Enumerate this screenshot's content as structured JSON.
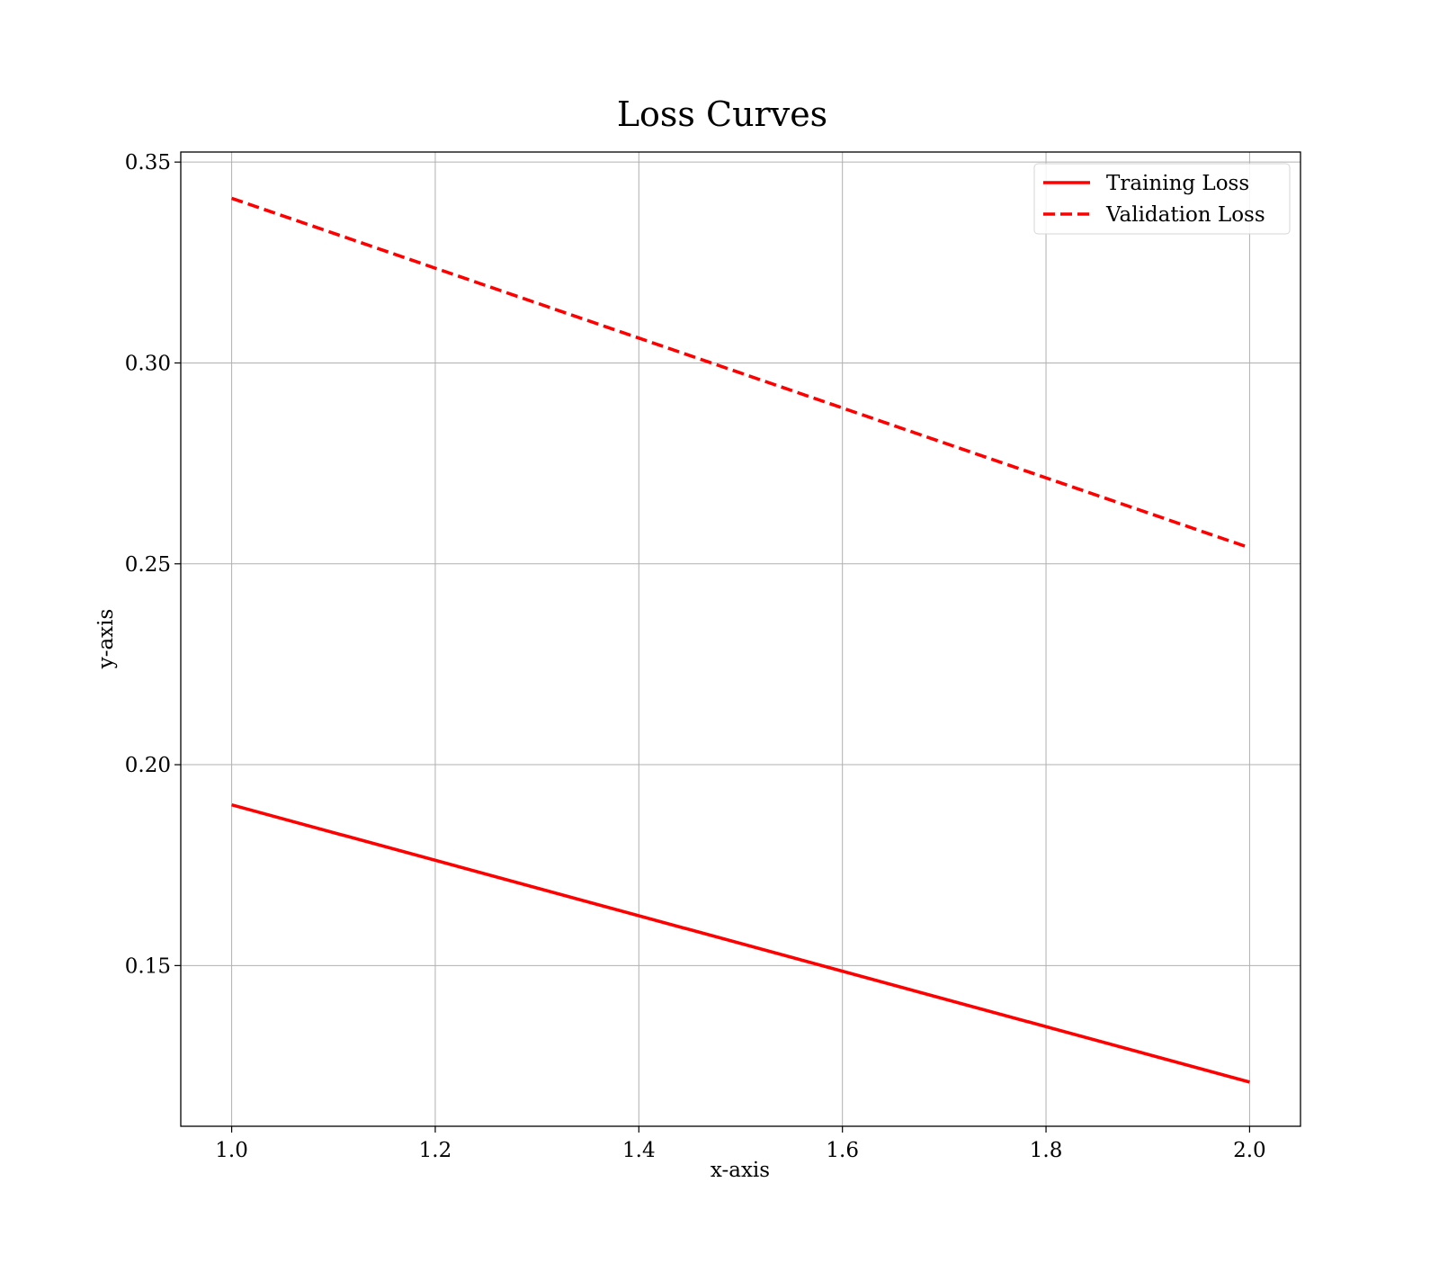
{
  "chart_data": {
    "type": "line",
    "title": "Loss Curves",
    "xlabel": "x-axis",
    "ylabel": "y-axis",
    "xlim": [
      0.95,
      2.05
    ],
    "ylim": [
      0.11,
      0.3525
    ],
    "x_ticks": [
      1.0,
      1.2,
      1.4,
      1.6,
      1.8,
      2.0
    ],
    "x_tick_labels": [
      "1.0",
      "1.2",
      "1.4",
      "1.6",
      "1.8",
      "2.0"
    ],
    "y_ticks": [
      0.15,
      0.2,
      0.25,
      0.3,
      0.35
    ],
    "y_tick_labels": [
      "0.15",
      "0.20",
      "0.25",
      "0.30",
      "0.35"
    ],
    "grid": true,
    "legend_position": "top-right",
    "series": [
      {
        "name": "Training Loss",
        "line_style": "solid",
        "color": "#ff0000",
        "x": [
          1.0,
          2.0
        ],
        "y": [
          0.19,
          0.121
        ]
      },
      {
        "name": "Validation Loss",
        "line_style": "dashed",
        "color": "#ff0000",
        "x": [
          1.0,
          2.0
        ],
        "y": [
          0.341,
          0.254
        ]
      }
    ]
  }
}
